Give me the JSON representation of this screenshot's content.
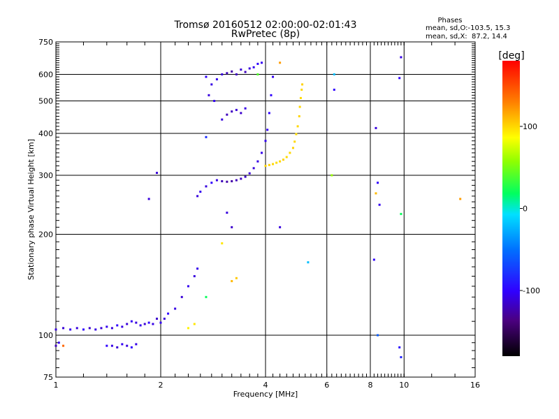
{
  "chart_data": {
    "type": "scatter",
    "title": "Tromsø 20160512 02:00:00-02:01:43",
    "subtitle": "RwPretec (8p)",
    "xlabel": "Frequency [MHz]",
    "ylabel": "Stationary phase Virtual Height [km]",
    "x_scale": "log",
    "y_scale": "log",
    "xlim": [
      1,
      16
    ],
    "ylim": [
      75,
      750
    ],
    "x_ticks": [
      1,
      2,
      4,
      6,
      8,
      10,
      16
    ],
    "y_ticks": [
      75,
      100,
      200,
      300,
      400,
      500,
      600,
      750
    ],
    "grid": true,
    "info": {
      "heading": "Phases",
      "line1": "mean, sd,O:-103.5, 15.3",
      "line2": "mean, sd,X:  87.2, 14.4"
    },
    "colorbar": {
      "label": "[deg]",
      "range": [
        -180,
        180
      ],
      "ticks": [
        100,
        0,
        -100
      ]
    },
    "series": [
      {
        "points": [
          [
            1.0,
            104,
            -110
          ],
          [
            1.05,
            105,
            -112
          ],
          [
            1.1,
            104,
            -105
          ],
          [
            1.15,
            105,
            -110
          ],
          [
            1.2,
            104,
            -100
          ],
          [
            1.25,
            105,
            -115
          ],
          [
            1.3,
            104,
            -108
          ],
          [
            1.35,
            105,
            -112
          ],
          [
            1.4,
            106,
            -105
          ],
          [
            1.45,
            105,
            -110
          ],
          [
            1.5,
            107,
            -100
          ],
          [
            1.55,
            106,
            -108
          ],
          [
            1.6,
            108,
            -112
          ],
          [
            1.65,
            110,
            -104
          ],
          [
            1.7,
            109,
            -110
          ],
          [
            1.75,
            107,
            -106
          ],
          [
            1.8,
            108,
            -112
          ],
          [
            1.85,
            109,
            -100
          ],
          [
            1.9,
            108,
            -108
          ],
          [
            1.95,
            112,
            -115
          ],
          [
            2.0,
            109,
            -104
          ],
          [
            2.05,
            112,
            -110
          ],
          [
            2.1,
            116,
            -100
          ],
          [
            2.2,
            120,
            -108
          ],
          [
            2.3,
            130,
            -112
          ],
          [
            2.4,
            140,
            -105
          ],
          [
            2.5,
            150,
            -110
          ],
          [
            2.55,
            158,
            -106
          ],
          [
            1.4,
            93,
            -100
          ],
          [
            1.45,
            93,
            -108
          ],
          [
            1.5,
            92,
            -112
          ],
          [
            1.55,
            94,
            -104
          ],
          [
            1.6,
            93,
            -110
          ],
          [
            1.65,
            92,
            -100
          ],
          [
            1.7,
            94,
            -108
          ],
          [
            1.0,
            93,
            -120
          ],
          [
            1.02,
            95,
            -105
          ],
          [
            2.55,
            260,
            -110
          ],
          [
            2.6,
            268,
            -105
          ],
          [
            2.7,
            278,
            -110
          ],
          [
            2.8,
            285,
            -100
          ],
          [
            2.9,
            290,
            -108
          ],
          [
            3.0,
            288,
            -120
          ],
          [
            3.1,
            287,
            -125
          ],
          [
            3.2,
            288,
            -125
          ],
          [
            3.3,
            290,
            -120
          ],
          [
            3.4,
            293,
            -118
          ],
          [
            3.5,
            297,
            -115
          ],
          [
            3.6,
            304,
            -112
          ],
          [
            3.7,
            315,
            -110
          ],
          [
            3.8,
            330,
            -108
          ],
          [
            3.9,
            350,
            -106
          ],
          [
            4.0,
            380,
            -104
          ],
          [
            4.05,
            410,
            -102
          ],
          [
            4.1,
            460,
            -100
          ],
          [
            4.15,
            520,
            -100
          ],
          [
            4.2,
            590,
            -105
          ],
          [
            2.8,
            560,
            -108
          ],
          [
            2.9,
            580,
            -105
          ],
          [
            3.0,
            600,
            -110
          ],
          [
            3.1,
            605,
            -120
          ],
          [
            3.2,
            612,
            -125
          ],
          [
            3.3,
            600,
            -118
          ],
          [
            3.4,
            620,
            -112
          ],
          [
            3.5,
            610,
            -120
          ],
          [
            3.6,
            625,
            -110
          ],
          [
            3.7,
            630,
            -105
          ],
          [
            3.8,
            645,
            -100
          ],
          [
            3.9,
            650,
            -104
          ],
          [
            2.7,
            590,
            -100
          ],
          [
            2.75,
            520,
            -110
          ],
          [
            2.85,
            500,
            -104
          ],
          [
            3.0,
            440,
            -110
          ],
          [
            3.1,
            455,
            -120
          ],
          [
            3.2,
            465,
            -118
          ],
          [
            3.3,
            470,
            -112
          ],
          [
            3.4,
            460,
            -115
          ],
          [
            3.5,
            475,
            -108
          ],
          [
            1.85,
            255,
            -110
          ],
          [
            1.95,
            305,
            -112
          ],
          [
            2.7,
            390,
            -80
          ],
          [
            3.1,
            232,
            -110
          ],
          [
            3.2,
            210,
            -115
          ],
          [
            4.4,
            210,
            -110
          ],
          [
            6.3,
            540,
            -100
          ],
          [
            6.2,
            300,
            60
          ],
          [
            8.3,
            415,
            -110
          ],
          [
            8.4,
            285,
            -100
          ],
          [
            8.5,
            245,
            -105
          ],
          [
            9.7,
            585,
            -100
          ],
          [
            9.8,
            675,
            -108
          ],
          [
            9.7,
            92,
            -95
          ],
          [
            9.8,
            86,
            -85
          ],
          [
            8.2,
            168,
            -100
          ],
          [
            8.4,
            100,
            -60
          ]
        ]
      },
      {
        "points": [
          [
            4.0,
            320,
            100
          ],
          [
            4.1,
            322,
            102
          ],
          [
            4.2,
            324,
            100
          ],
          [
            4.3,
            327,
            98
          ],
          [
            4.4,
            330,
            100
          ],
          [
            4.5,
            334,
            101
          ],
          [
            4.6,
            340,
            99
          ],
          [
            4.7,
            350,
            100
          ],
          [
            4.8,
            362,
            102
          ],
          [
            4.85,
            378,
            100
          ],
          [
            4.9,
            398,
            98
          ],
          [
            4.95,
            420,
            100
          ],
          [
            5.0,
            450,
            101
          ],
          [
            5.02,
            480,
            100
          ],
          [
            5.05,
            510,
            99
          ],
          [
            5.08,
            540,
            100
          ],
          [
            5.1,
            560,
            102
          ],
          [
            3.0,
            188,
            95
          ],
          [
            3.2,
            145,
            110
          ],
          [
            3.3,
            148,
            105
          ],
          [
            2.4,
            105,
            90
          ],
          [
            2.5,
            108,
            95
          ],
          [
            2.7,
            130,
            20
          ],
          [
            3.8,
            600,
            40
          ],
          [
            4.4,
            650,
            120
          ],
          [
            5.3,
            165,
            -20
          ],
          [
            6.3,
            600,
            -20
          ],
          [
            8.3,
            265,
            110
          ],
          [
            9.8,
            230,
            20
          ],
          [
            14.5,
            255,
            120
          ],
          [
            1.05,
            93,
            140
          ]
        ]
      }
    ]
  }
}
